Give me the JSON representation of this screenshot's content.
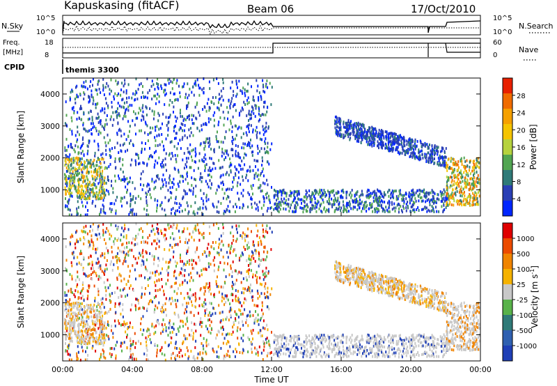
{
  "header": {
    "station": "Kapuskasing (fitACF)",
    "beam": "Beam 06",
    "date": "17/Oct/2010"
  },
  "left_labels": {
    "nsky": "N.Sky",
    "freq": "Freq.",
    "mhz": "[MHz]",
    "cpid": "CPID"
  },
  "right_labels": {
    "nsearch": "N.Search",
    "nave": "Nave"
  },
  "axis_ticks": {
    "noise_top": "10^5",
    "noise_bottom": "10^0",
    "noise_right_top": "10^5",
    "noise_right_bottom": "10^0",
    "freq_top": "18",
    "freq_bottom": "8",
    "nave_top": "60",
    "nave_bottom": "0"
  },
  "cpid_text": "themis 3300",
  "colors": {
    "power": [
      "#0026ff",
      "#2a3fb5",
      "#2f7a78",
      "#52a552",
      "#b6d23e",
      "#f5c400",
      "#f5a000",
      "#f06b00",
      "#e82000"
    ],
    "velocity": [
      "#1f3fb6",
      "#2f60b0",
      "#2f7a78",
      "#58b24a",
      "#c8c8c8",
      "#f5b200",
      "#f08400",
      "#ec4b00",
      "#e00000"
    ]
  },
  "chart_data": [
    {
      "type": "heatmap",
      "name": "power-panel",
      "ylabel": "Slant Range [km]",
      "xlim": [
        "00:00",
        "00:00"
      ],
      "ylim": [
        180,
        4500
      ],
      "y_ticks": [
        "1000",
        "2000",
        "3000",
        "4000"
      ],
      "colorbar": {
        "label": "Power [dB]",
        "ticks": [
          "28",
          "24",
          "20",
          "16",
          "12",
          "8",
          "4"
        ]
      }
    },
    {
      "type": "heatmap",
      "name": "velocity-panel",
      "ylabel": "Slant Range [km]",
      "xlabel": "Time UT",
      "x_ticks": [
        "00:00",
        "04:00",
        "08:00",
        "12:00",
        "16:00",
        "20:00",
        "00:00"
      ],
      "ylim": [
        180,
        4500
      ],
      "y_ticks": [
        "1000",
        "2000",
        "3000",
        "4000"
      ],
      "colorbar": {
        "label": "Velocity [m s",
        "label_sup": "-1",
        "label_end": "]",
        "ticks": [
          "1000",
          "500",
          "100",
          "25",
          "-25",
          "-100",
          "-500",
          "-1000"
        ]
      }
    }
  ]
}
